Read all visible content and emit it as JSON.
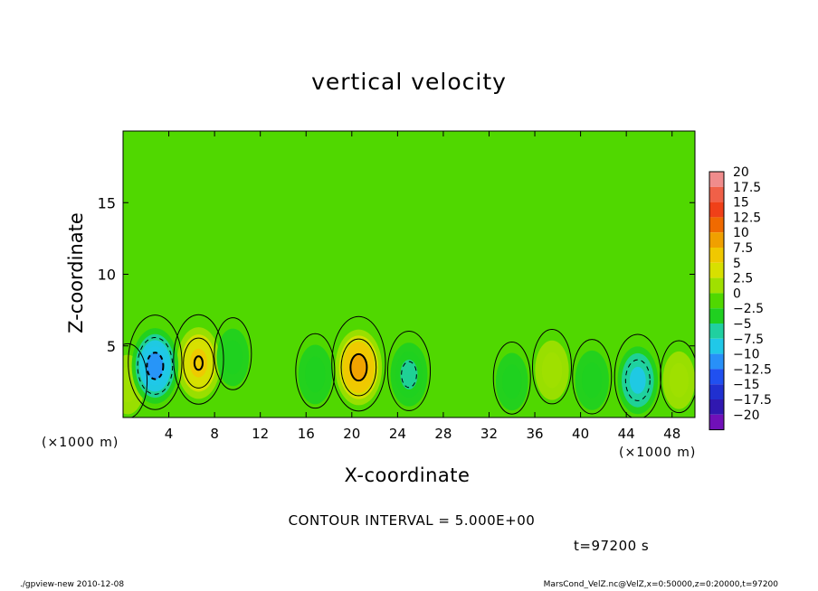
{
  "chart_data": {
    "type": "heatmap",
    "title": "vertical velocity",
    "xlabel": "X-coordinate",
    "ylabel": "Z-coordinate",
    "x_unit_label": "(×1000 m)",
    "y_unit_label": "(×1000 m)",
    "xlim": [
      0,
      50
    ],
    "ylim": [
      0,
      20
    ],
    "x_ticks": [
      4,
      8,
      12,
      16,
      20,
      24,
      28,
      32,
      36,
      40,
      44,
      48
    ],
    "y_ticks": [
      5,
      10,
      15
    ],
    "contour_interval_label": "CONTOUR INTERVAL = 5.000E+00",
    "time_label": "t=97200 s",
    "colorbar": {
      "levels": [
        "20",
        "17.5",
        "15",
        "12.5",
        "10",
        "7.5",
        "5",
        "2.5",
        "0",
        "−2.5",
        "−5",
        "−7.5",
        "−10",
        "−12.5",
        "−15",
        "−17.5",
        "−20"
      ],
      "colors": [
        "#f08c8c",
        "#f06048",
        "#f04018",
        "#f06a00",
        "#f0a000",
        "#f0c800",
        "#d8e000",
        "#a0e000",
        "#50d800",
        "#20d020",
        "#20d0a0",
        "#20c8e8",
        "#2890f8",
        "#2050f0",
        "#2030d0",
        "#3018b0",
        "#7010b8"
      ]
    },
    "features": [
      {
        "kind": "updraft",
        "x": 6.6,
        "z": 3.8,
        "peak": 10
      },
      {
        "kind": "updraft",
        "x": 20.6,
        "z": 3.5,
        "peak": 12
      },
      {
        "kind": "updraft",
        "x": 37.5,
        "z": 3.3,
        "peak": 4
      },
      {
        "kind": "updraft",
        "x": 0.4,
        "z": 2.3,
        "peak": 4
      },
      {
        "kind": "updraft",
        "x": 48.6,
        "z": 2.6,
        "peak": 3
      },
      {
        "kind": "downdraft",
        "x": 2.8,
        "z": 3.6,
        "peak": -12
      },
      {
        "kind": "downdraft",
        "x": 25.0,
        "z": 3.0,
        "peak": -6
      },
      {
        "kind": "downdraft",
        "x": 45.0,
        "z": 2.6,
        "peak": -8
      },
      {
        "kind": "downdraft",
        "x": 16.8,
        "z": 3.0,
        "peak": -4
      },
      {
        "kind": "downdraft",
        "x": 41.0,
        "z": 2.6,
        "peak": -4
      },
      {
        "kind": "downdraft",
        "x": 34.0,
        "z": 2.5,
        "peak": -3
      },
      {
        "kind": "downdraft",
        "x": 9.6,
        "z": 4.2,
        "peak": -3
      }
    ]
  },
  "footer": {
    "left": "./gpview-new   2010-12-08",
    "right": "MarsCond_VelZ.nc@VelZ,x=0:50000,z=0:20000,t=97200"
  }
}
